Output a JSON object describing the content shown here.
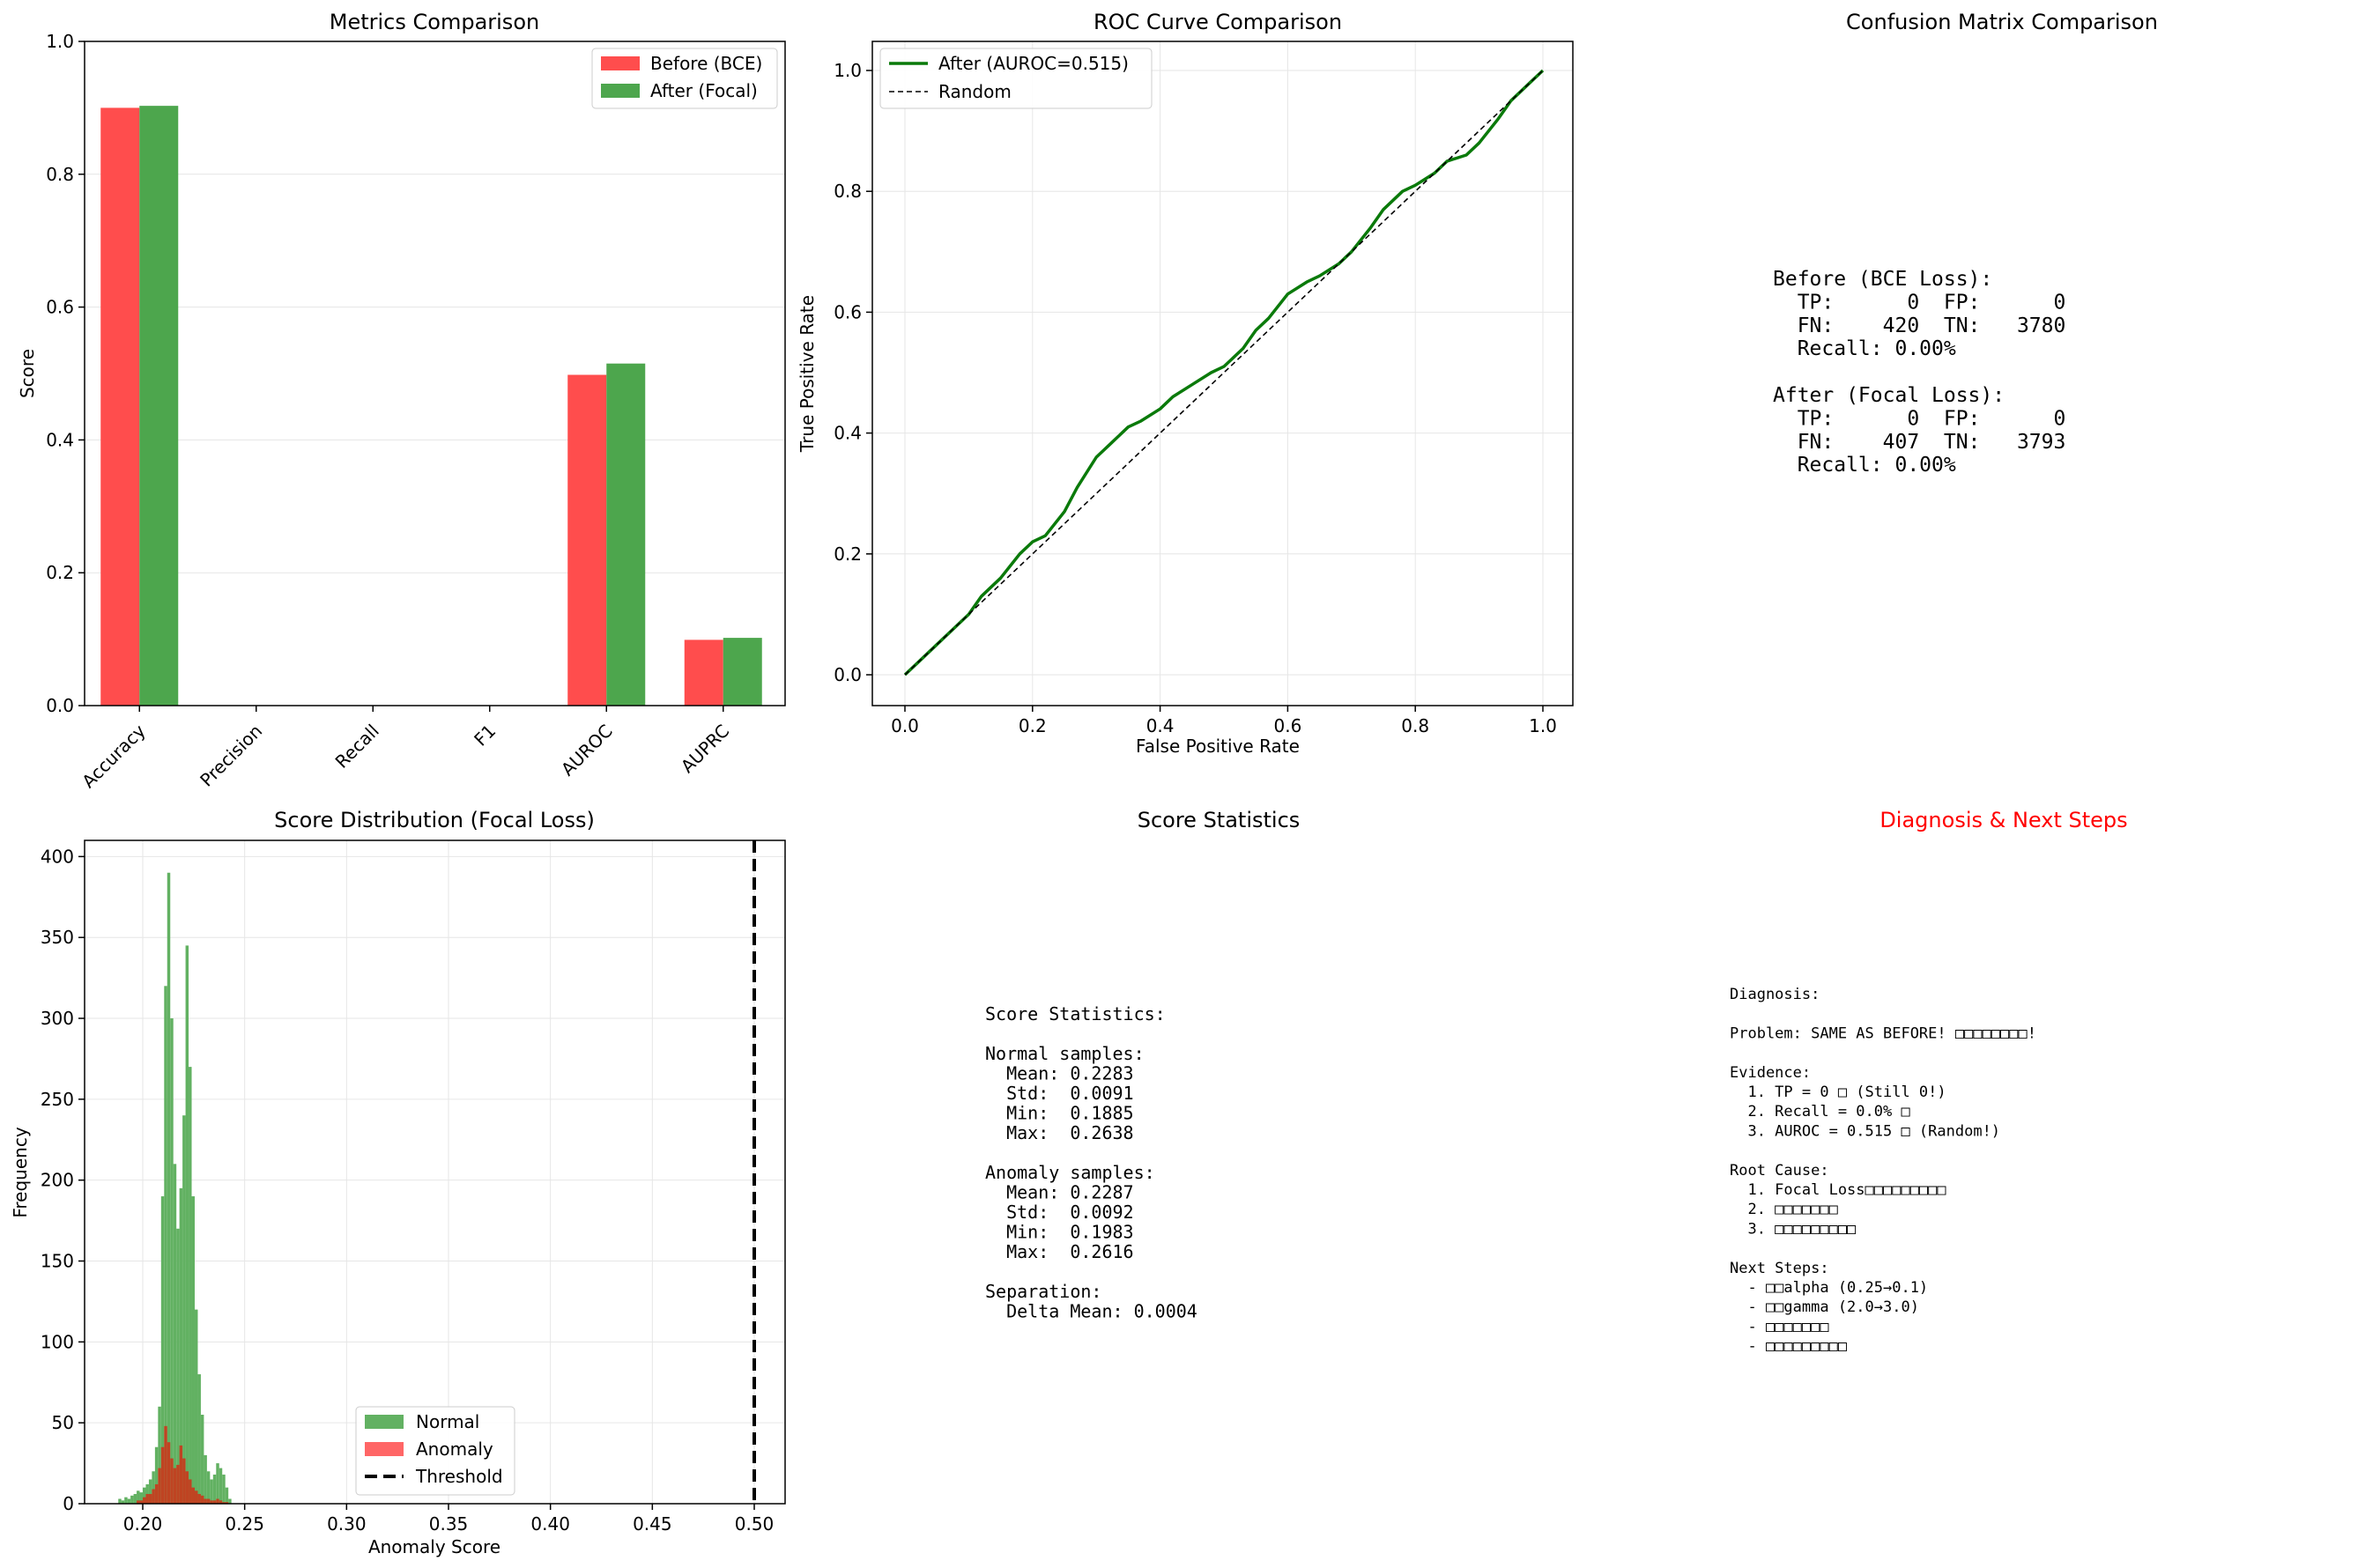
{
  "colors": {
    "before": "#ff4d4d",
    "after": "#4da64d",
    "roc_line": "#0a7a0a",
    "random_line": "#000000",
    "normal_hist": "#62b162",
    "anomaly_hist": "#ff6666",
    "overlap_hist": "#bf4422",
    "threshold": "#000000",
    "grid": "#e6e6e6",
    "red_title": "#ff0000"
  },
  "chart_data": [
    {
      "type": "bar",
      "title": "Metrics Comparison",
      "xlabel": "",
      "ylabel": "Score",
      "ylim": [
        0,
        1.0
      ],
      "yticks": [
        "0.0",
        "0.2",
        "0.4",
        "0.6",
        "0.8",
        "1.0"
      ],
      "categories": [
        "Accuracy",
        "Precision",
        "Recall",
        "F1",
        "AUROC",
        "AUPRC"
      ],
      "series": [
        {
          "name": "Before (BCE)",
          "values": [
            0.9,
            0.0,
            0.0,
            0.0,
            0.498,
            0.099
          ]
        },
        {
          "name": "After (Focal)",
          "values": [
            0.903,
            0.0,
            0.0,
            0.0,
            0.515,
            0.102
          ]
        }
      ],
      "legend": "top-right",
      "grid": true
    },
    {
      "type": "line",
      "title": "ROC Curve Comparison",
      "xlabel": "False Positive Rate",
      "ylabel": "True Positive Rate",
      "xlim": [
        0,
        1.0
      ],
      "ylim": [
        0,
        1.0
      ],
      "xticks": [
        "0.0",
        "0.2",
        "0.4",
        "0.6",
        "0.8",
        "1.0"
      ],
      "yticks": [
        "0.0",
        "0.2",
        "0.4",
        "0.6",
        "0.8",
        "1.0"
      ],
      "series": [
        {
          "name": "After (AUROC=0.515)",
          "x": [
            0.0,
            0.02,
            0.05,
            0.08,
            0.1,
            0.12,
            0.15,
            0.18,
            0.2,
            0.22,
            0.25,
            0.27,
            0.3,
            0.32,
            0.35,
            0.37,
            0.4,
            0.42,
            0.45,
            0.48,
            0.5,
            0.53,
            0.55,
            0.57,
            0.6,
            0.63,
            0.65,
            0.68,
            0.7,
            0.73,
            0.75,
            0.78,
            0.8,
            0.83,
            0.85,
            0.88,
            0.9,
            0.93,
            0.95,
            0.98,
            1.0
          ],
          "y": [
            0.0,
            0.02,
            0.05,
            0.08,
            0.1,
            0.13,
            0.16,
            0.2,
            0.22,
            0.23,
            0.27,
            0.31,
            0.36,
            0.38,
            0.41,
            0.42,
            0.44,
            0.46,
            0.48,
            0.5,
            0.51,
            0.54,
            0.57,
            0.59,
            0.63,
            0.65,
            0.66,
            0.68,
            0.7,
            0.74,
            0.77,
            0.8,
            0.81,
            0.83,
            0.85,
            0.86,
            0.88,
            0.92,
            0.95,
            0.98,
            1.0
          ]
        },
        {
          "name": "Random",
          "x": [
            0,
            1
          ],
          "y": [
            0,
            1
          ],
          "style": "dashed"
        }
      ],
      "legend": "top-left",
      "grid": true
    },
    {
      "type": "histogram",
      "title": "Score Distribution (Focal Loss)",
      "xlabel": "Anomaly Score",
      "ylabel": "Frequency",
      "xlim": [
        0.18,
        0.515
      ],
      "ylim": [
        0,
        410
      ],
      "xticks": [
        0.2,
        0.25,
        0.3,
        0.35,
        0.4,
        0.45,
        0.5
      ],
      "xtick_labels": [
        "0.20",
        "0.25",
        "0.30",
        "0.35",
        "0.40",
        "0.45",
        "0.50"
      ],
      "yticks": [
        0,
        50,
        100,
        150,
        200,
        250,
        300,
        350,
        400
      ],
      "bin_start": 0.188,
      "bin_width": 0.0015,
      "series": [
        {
          "name": "Normal",
          "counts": [
            3,
            2,
            4,
            3,
            5,
            6,
            8,
            7,
            10,
            12,
            15,
            20,
            35,
            60,
            190,
            320,
            390,
            300,
            210,
            170,
            195,
            240,
            345,
            270,
            190,
            120,
            80,
            55,
            30,
            20,
            15,
            18,
            25,
            22,
            18,
            10,
            3
          ]
        },
        {
          "name": "Anomaly",
          "counts": [
            0,
            0,
            0,
            0,
            0,
            0,
            2,
            2,
            4,
            6,
            6,
            9,
            12,
            22,
            35,
            48,
            38,
            28,
            22,
            24,
            36,
            28,
            20,
            15,
            10,
            8,
            6,
            5,
            3,
            3,
            2,
            2,
            3,
            2,
            1,
            1,
            0
          ]
        }
      ],
      "threshold": {
        "name": "Threshold",
        "x": 0.5
      },
      "legend": "lower-center",
      "grid": true
    }
  ],
  "confusion_panel": {
    "title": "Confusion Matrix Comparison",
    "lines": [
      "Before (BCE Loss):",
      "  TP:      0  FP:      0",
      "  FN:    420  TN:   3780",
      "  Recall: 0.00%",
      "",
      "After (Focal Loss):",
      "  TP:      0  FP:      0",
      "  FN:    407  TN:   3793",
      "  Recall: 0.00%"
    ]
  },
  "stats_panel": {
    "title": "Score Statistics",
    "lines": [
      "Score Statistics:",
      "",
      "Normal samples:",
      "  Mean: 0.2283",
      "  Std:  0.0091",
      "  Min:  0.1885",
      "  Max:  0.2638",
      "",
      "Anomaly samples:",
      "  Mean: 0.2287",
      "  Std:  0.0092",
      "  Min:  0.1983",
      "  Max:  0.2616",
      "",
      "Separation:",
      "  Delta Mean: 0.0004"
    ]
  },
  "diagnosis_panel": {
    "title": "Diagnosis & Next Steps",
    "lines": [
      "Diagnosis:",
      "",
      "Problem: SAME AS BEFORE! □□□□□□□□!",
      "",
      "Evidence:",
      "  1. TP = 0 □ (Still 0!)",
      "  2. Recall = 0.0% □",
      "  3. AUROC = 0.515 □ (Random!)",
      "",
      "Root Cause:",
      "  1. Focal Loss□□□□□□□□□",
      "  2. □□□□□□□",
      "  3. □□□□□□□□□",
      "",
      "Next Steps:",
      "  - □□alpha (0.25→0.1)",
      "  - □□gamma (2.0→3.0)",
      "  - □□□□□□□",
      "  - □□□□□□□□□"
    ]
  }
}
